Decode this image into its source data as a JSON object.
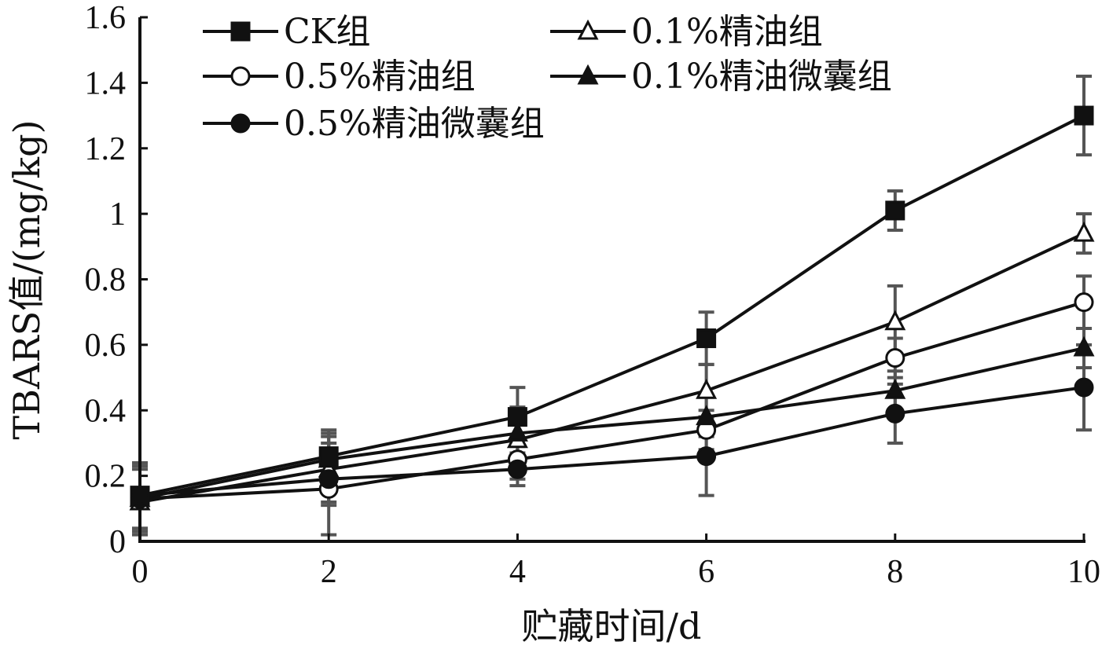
{
  "chart_data": {
    "type": "line",
    "xlabel": "贮藏时间/d",
    "ylabel": "TBARS值/(mg/kg)",
    "x": [
      0,
      2,
      4,
      6,
      8,
      10
    ],
    "xlim": [
      0,
      10
    ],
    "ylim": [
      0,
      1.6
    ],
    "xticks": [
      "0",
      "2",
      "4",
      "6",
      "8",
      "10"
    ],
    "yticks": [
      "0",
      "0.2",
      "0.4",
      "0.6",
      "0.8",
      "1",
      "1.2",
      "1.4",
      "1.6"
    ],
    "grid": false,
    "legend_position": "top-left",
    "line_color": "#111111",
    "errorbar_color": "#555555",
    "series": [
      {
        "name": "CK组",
        "marker": "square-filled",
        "values": [
          0.14,
          0.26,
          0.38,
          0.62,
          1.01,
          1.3
        ],
        "errors": [
          0.1,
          0.08,
          0.09,
          0.08,
          0.06,
          0.12
        ]
      },
      {
        "name": "0.1%精油组",
        "marker": "triangle-open",
        "values": [
          0.12,
          0.22,
          0.31,
          0.46,
          0.67,
          0.94
        ],
        "errors": [
          0.1,
          0.1,
          0.09,
          0.08,
          0.11,
          0.06
        ]
      },
      {
        "name": "0.5%精油组",
        "marker": "circle-open",
        "values": [
          0.13,
          0.16,
          0.25,
          0.34,
          0.56,
          0.73
        ],
        "errors": [
          0.1,
          0.14,
          0.06,
          0.06,
          0.06,
          0.08
        ]
      },
      {
        "name": "0.1%精油微囊组",
        "marker": "triangle-filled",
        "values": [
          0.13,
          0.25,
          0.33,
          0.38,
          0.46,
          0.59
        ],
        "errors": [
          0.1,
          0.08,
          0.08,
          0.06,
          0.06,
          0.06
        ]
      },
      {
        "name": "0.5%精油微囊组",
        "marker": "circle-filled",
        "values": [
          0.14,
          0.19,
          0.22,
          0.26,
          0.39,
          0.47
        ],
        "errors": [
          0.1,
          0.08,
          0.05,
          0.12,
          0.09,
          0.13
        ]
      }
    ]
  }
}
